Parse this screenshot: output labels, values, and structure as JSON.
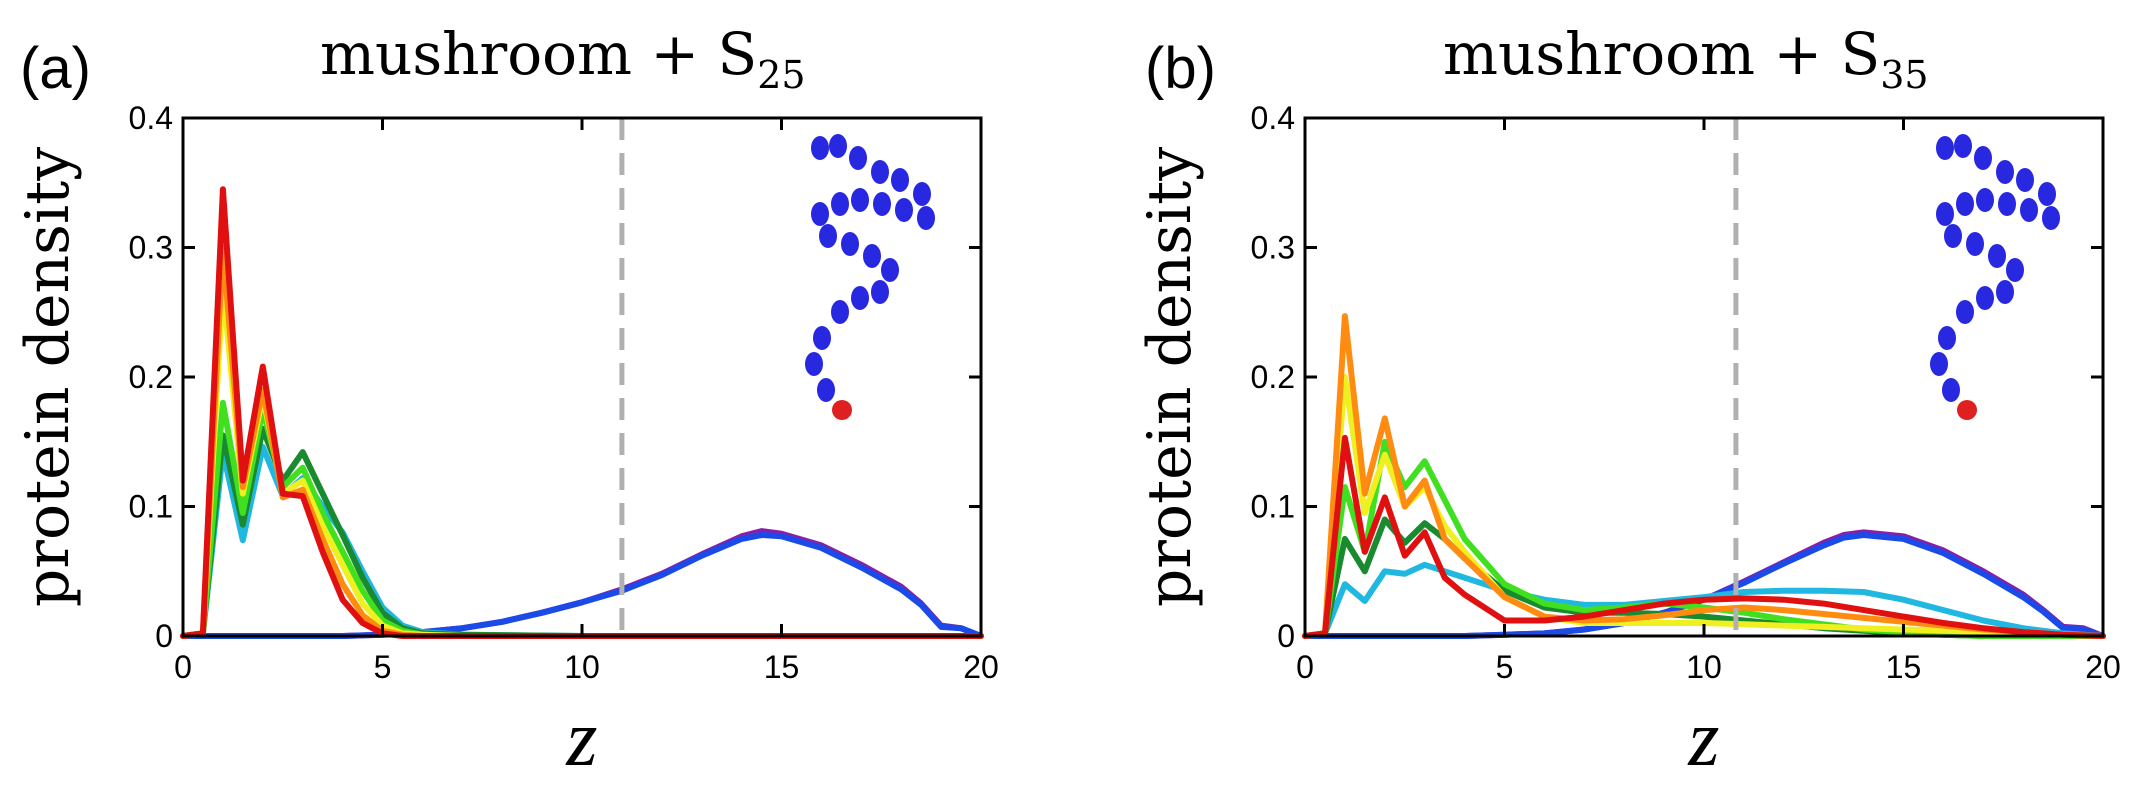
{
  "chart_data": [
    {
      "panel_label": "(a)",
      "title": "mushroom + S",
      "title_subscript": "25",
      "type": "line",
      "xlabel": "z",
      "ylabel": "protein density",
      "xlim": [
        0,
        20
      ],
      "ylim": [
        0,
        0.4
      ],
      "xticks": [
        0,
        5,
        10,
        15,
        20
      ],
      "yticks": [
        0,
        0.1,
        0.2,
        0.3,
        0.4
      ],
      "ytick_labels": [
        "0",
        "0.1",
        "0.2",
        "0.3",
        "0.4"
      ],
      "grid": false,
      "legend": "none",
      "reference_line_x": 11,
      "inset": {
        "bead_color": "#2828e0",
        "tip_color": "#e02020"
      },
      "series": [
        {
          "color": "#8a1ea8",
          "x": [
            0,
            1,
            2,
            3,
            4,
            5,
            6,
            7,
            8,
            9,
            10,
            11,
            12,
            13,
            14,
            14.5,
            15,
            16,
            17,
            18,
            18.5,
            19,
            19.5,
            20
          ],
          "y": [
            0,
            0,
            0,
            0,
            0,
            0.001,
            0.003,
            0.006,
            0.011,
            0.018,
            0.026,
            0.036,
            0.048,
            0.063,
            0.077,
            0.081,
            0.079,
            0.07,
            0.055,
            0.038,
            0.025,
            0.008,
            0.006,
            0
          ]
        },
        {
          "color": "#1a4ae8",
          "x": [
            0,
            1,
            2,
            3,
            4,
            5,
            6,
            7,
            8,
            9,
            10,
            11,
            12,
            13,
            14,
            14.5,
            15,
            16,
            17,
            18,
            18.5,
            19,
            19.5,
            20
          ],
          "y": [
            0,
            0,
            0,
            0,
            0,
            0.001,
            0.003,
            0.006,
            0.011,
            0.018,
            0.026,
            0.035,
            0.047,
            0.062,
            0.075,
            0.078,
            0.077,
            0.068,
            0.053,
            0.036,
            0.024,
            0.007,
            0.006,
            0
          ]
        },
        {
          "color": "#20b8e0",
          "x": [
            0,
            0.5,
            1,
            1.5,
            2,
            2.5,
            3,
            3.5,
            4,
            4.5,
            5,
            5.5,
            6,
            7,
            10,
            15,
            20
          ],
          "y": [
            0,
            0.002,
            0.142,
            0.074,
            0.146,
            0.108,
            0.122,
            0.1,
            0.08,
            0.05,
            0.022,
            0.008,
            0.003,
            0.001,
            0,
            0,
            0
          ]
        },
        {
          "color": "#1a8a30",
          "x": [
            0,
            0.5,
            1,
            1.5,
            2,
            2.5,
            3,
            3.5,
            4,
            4.5,
            5,
            5.5,
            6,
            7,
            10,
            15,
            20
          ],
          "y": [
            0,
            0.002,
            0.155,
            0.086,
            0.16,
            0.12,
            0.142,
            0.11,
            0.078,
            0.045,
            0.018,
            0.006,
            0.002,
            0.001,
            0,
            0,
            0
          ]
        },
        {
          "color": "#40e020",
          "x": [
            0,
            0.5,
            1,
            1.5,
            2,
            2.5,
            3,
            3.5,
            4,
            4.5,
            5,
            5.5,
            6,
            7,
            10,
            15,
            20
          ],
          "y": [
            0,
            0.002,
            0.18,
            0.095,
            0.175,
            0.115,
            0.13,
            0.095,
            0.065,
            0.035,
            0.012,
            0.004,
            0.001,
            0,
            0,
            0,
            0
          ]
        },
        {
          "color": "#f0f020",
          "x": [
            0,
            0.5,
            1,
            1.5,
            2,
            2.5,
            3,
            3.5,
            4,
            4.5,
            5,
            5.5,
            6,
            7,
            10,
            15,
            20
          ],
          "y": [
            0,
            0.002,
            0.27,
            0.11,
            0.185,
            0.11,
            0.12,
            0.085,
            0.055,
            0.025,
            0.008,
            0.002,
            0.001,
            0,
            0,
            0,
            0
          ]
        },
        {
          "color": "#ff8c10",
          "x": [
            0,
            0.5,
            1,
            1.5,
            2,
            2.5,
            3,
            3.5,
            4,
            4.5,
            5,
            5.5,
            6,
            7,
            10,
            15,
            20
          ],
          "y": [
            0,
            0.002,
            0.3,
            0.115,
            0.19,
            0.107,
            0.113,
            0.075,
            0.04,
            0.016,
            0.004,
            0.001,
            0,
            0,
            0,
            0,
            0
          ]
        },
        {
          "color": "#e01010",
          "x": [
            0,
            0.5,
            1,
            1.5,
            2,
            2.5,
            3,
            3.5,
            4,
            4.5,
            5,
            5.5,
            6,
            7,
            10,
            15,
            20
          ],
          "y": [
            0,
            0.002,
            0.345,
            0.12,
            0.208,
            0.11,
            0.108,
            0.065,
            0.028,
            0.01,
            0.002,
            0,
            0,
            0,
            0,
            0,
            0
          ]
        }
      ]
    },
    {
      "panel_label": "(b)",
      "title": "mushroom + S",
      "title_subscript": "35",
      "type": "line",
      "xlabel": "z",
      "ylabel": "protein density",
      "xlim": [
        0,
        20
      ],
      "ylim": [
        0,
        0.4
      ],
      "xticks": [
        0,
        5,
        10,
        15,
        20
      ],
      "yticks": [
        0,
        0.1,
        0.2,
        0.3,
        0.4
      ],
      "ytick_labels": [
        "0",
        "0.1",
        "0.2",
        "0.3",
        "0.4"
      ],
      "grid": false,
      "legend": "none",
      "reference_line_x": 10.8,
      "inset": {
        "bead_color": "#2828e0",
        "tip_color": "#e02020"
      },
      "series": [
        {
          "color": "#8a1ea8",
          "x": [
            0,
            1,
            2,
            3,
            4,
            5,
            6,
            7,
            8,
            9,
            10,
            11,
            12,
            13,
            13.5,
            14,
            15,
            16,
            17,
            18,
            18.5,
            19,
            19.5,
            20
          ],
          "y": [
            0,
            0,
            0,
            0,
            0,
            0.001,
            0.002,
            0.005,
            0.01,
            0.018,
            0.028,
            0.042,
            0.057,
            0.072,
            0.078,
            0.08,
            0.077,
            0.066,
            0.05,
            0.032,
            0.02,
            0.007,
            0.006,
            0
          ]
        },
        {
          "color": "#1a4ae8",
          "x": [
            0,
            1,
            2,
            3,
            4,
            5,
            6,
            7,
            8,
            9,
            10,
            11,
            12,
            13,
            13.5,
            14,
            15,
            16,
            17,
            18,
            18.5,
            19,
            19.5,
            20
          ],
          "y": [
            0,
            0,
            0,
            0,
            0,
            0.001,
            0.002,
            0.005,
            0.01,
            0.018,
            0.028,
            0.041,
            0.056,
            0.07,
            0.076,
            0.078,
            0.075,
            0.064,
            0.048,
            0.03,
            0.019,
            0.006,
            0.005,
            0
          ]
        },
        {
          "color": "#20b8e0",
          "x": [
            0,
            0.5,
            1,
            1.5,
            2,
            2.5,
            3,
            3.5,
            4,
            5,
            6,
            7,
            8,
            9,
            10,
            11,
            12,
            13,
            14,
            15,
            16,
            17,
            18,
            19,
            20
          ],
          "y": [
            0,
            0.002,
            0.04,
            0.027,
            0.05,
            0.048,
            0.055,
            0.05,
            0.045,
            0.035,
            0.028,
            0.024,
            0.024,
            0.027,
            0.03,
            0.034,
            0.035,
            0.035,
            0.034,
            0.028,
            0.02,
            0.012,
            0.006,
            0.002,
            0
          ]
        },
        {
          "color": "#1a8a30",
          "x": [
            0,
            0.5,
            1,
            1.5,
            2,
            2.5,
            3,
            3.5,
            4,
            5,
            6,
            7,
            8,
            9,
            10,
            11,
            12,
            13,
            14,
            15,
            16,
            17,
            18,
            19,
            20
          ],
          "y": [
            0,
            0.002,
            0.075,
            0.05,
            0.09,
            0.072,
            0.087,
            0.075,
            0.06,
            0.035,
            0.022,
            0.018,
            0.018,
            0.017,
            0.015,
            0.012,
            0.009,
            0.006,
            0.004,
            0.002,
            0.001,
            0,
            0,
            0,
            0
          ]
        },
        {
          "color": "#40e020",
          "x": [
            0,
            0.5,
            1,
            1.5,
            2,
            2.5,
            3,
            3.5,
            4,
            5,
            6,
            7,
            8,
            9,
            10,
            11,
            12,
            13,
            14,
            15,
            16,
            17,
            18,
            19,
            20
          ],
          "y": [
            0,
            0.002,
            0.115,
            0.065,
            0.15,
            0.115,
            0.135,
            0.105,
            0.075,
            0.04,
            0.025,
            0.02,
            0.022,
            0.025,
            0.022,
            0.018,
            0.013,
            0.009,
            0.005,
            0.003,
            0.001,
            0,
            0,
            0,
            0
          ]
        },
        {
          "color": "#f0f020",
          "x": [
            0,
            0.5,
            1,
            1.5,
            2,
            2.5,
            3,
            3.5,
            4,
            5,
            6,
            7,
            8,
            9,
            10,
            11,
            12,
            13,
            14,
            15,
            16,
            17,
            18,
            19,
            20
          ],
          "y": [
            0,
            0.002,
            0.2,
            0.095,
            0.14,
            0.1,
            0.115,
            0.085,
            0.065,
            0.03,
            0.015,
            0.01,
            0.01,
            0.01,
            0.01,
            0.009,
            0.008,
            0.007,
            0.006,
            0.005,
            0.004,
            0.003,
            0.002,
            0.001,
            0
          ]
        },
        {
          "color": "#ff8c10",
          "x": [
            0,
            0.5,
            1,
            1.5,
            2,
            2.5,
            3,
            3.5,
            4,
            5,
            6,
            7,
            8,
            9,
            10,
            11,
            12,
            13,
            14,
            15,
            16,
            17,
            18,
            19,
            20
          ],
          "y": [
            0,
            0.002,
            0.247,
            0.11,
            0.168,
            0.1,
            0.12,
            0.075,
            0.06,
            0.03,
            0.015,
            0.012,
            0.013,
            0.016,
            0.02,
            0.022,
            0.02,
            0.017,
            0.014,
            0.011,
            0.008,
            0.005,
            0.003,
            0.001,
            0
          ]
        },
        {
          "color": "#e01010",
          "x": [
            0,
            0.5,
            1,
            1.5,
            2,
            2.5,
            3,
            3.5,
            4,
            5,
            6,
            7,
            8,
            9,
            10,
            11,
            12,
            13,
            14,
            15,
            16,
            17,
            18,
            19,
            20
          ],
          "y": [
            0,
            0.002,
            0.153,
            0.065,
            0.107,
            0.062,
            0.08,
            0.045,
            0.032,
            0.012,
            0.012,
            0.015,
            0.02,
            0.025,
            0.028,
            0.029,
            0.028,
            0.025,
            0.02,
            0.015,
            0.01,
            0.006,
            0.003,
            0.001,
            0
          ]
        }
      ]
    }
  ]
}
